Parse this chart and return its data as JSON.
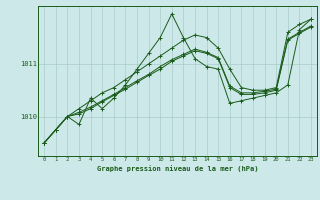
{
  "title": "Graphe pression niveau de la mer (hPa)",
  "background_color": "#cce8e8",
  "grid_color": "#aacccc",
  "line_color": "#1a5c1a",
  "x_ticks": [
    0,
    1,
    2,
    3,
    4,
    5,
    6,
    7,
    8,
    9,
    10,
    11,
    12,
    13,
    14,
    15,
    16,
    17,
    18,
    19,
    20,
    21,
    22,
    23
  ],
  "ylim": [
    1009.25,
    1012.1
  ],
  "y_ticks": [
    1010,
    1011
  ],
  "series": [
    [
      1009.5,
      1009.75,
      1010.0,
      1009.85,
      1010.35,
      1010.15,
      1010.35,
      1010.6,
      1010.9,
      1011.2,
      1011.5,
      1011.95,
      1011.5,
      1011.1,
      1010.95,
      1010.9,
      1010.25,
      1010.3,
      1010.35,
      1010.4,
      1010.45,
      1010.6,
      1011.65,
      1011.85
    ],
    [
      1009.5,
      1009.75,
      1010.0,
      1010.15,
      1010.3,
      1010.45,
      1010.55,
      1010.7,
      1010.85,
      1011.0,
      1011.15,
      1011.3,
      1011.45,
      1011.55,
      1011.5,
      1011.3,
      1010.9,
      1010.55,
      1010.5,
      1010.5,
      1010.55,
      1011.6,
      1011.75,
      1011.85
    ],
    [
      1009.5,
      1009.75,
      1010.0,
      1010.05,
      1010.15,
      1010.28,
      1010.4,
      1010.52,
      1010.65,
      1010.78,
      1010.9,
      1011.05,
      1011.15,
      1011.25,
      1011.2,
      1011.1,
      1010.55,
      1010.42,
      1010.42,
      1010.45,
      1010.5,
      1011.45,
      1011.58,
      1011.7
    ],
    [
      1009.5,
      1009.75,
      1010.0,
      1010.08,
      1010.18,
      1010.3,
      1010.42,
      1010.55,
      1010.68,
      1010.8,
      1010.95,
      1011.08,
      1011.18,
      1011.28,
      1011.22,
      1011.12,
      1010.58,
      1010.45,
      1010.45,
      1010.48,
      1010.52,
      1011.47,
      1011.6,
      1011.72
    ]
  ]
}
